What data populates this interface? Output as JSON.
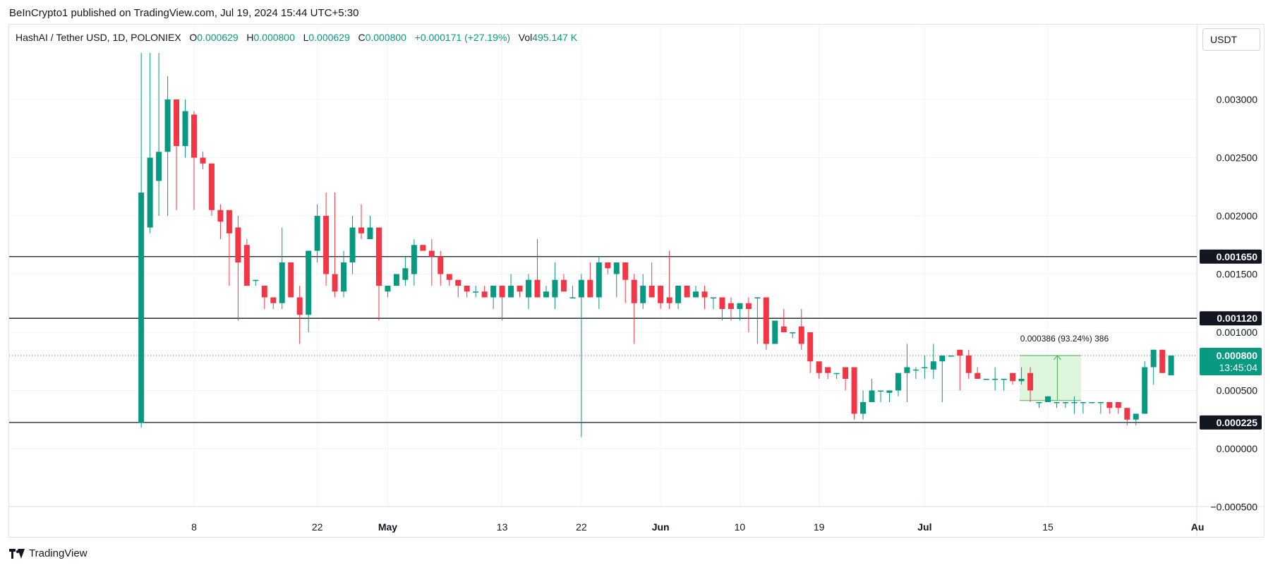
{
  "header": {
    "published": "BeInCrypto1 published on TradingView.com, Jul 19, 2024 15:44 UTC+5:30"
  },
  "legend": {
    "symbol": "HashAI / Tether USD, 1D, POLONIEX",
    "o_label": "O",
    "o_value": "0.000629",
    "h_label": "H",
    "h_value": "0.000800",
    "l_label": "L",
    "l_value": "0.000629",
    "c_label": "C",
    "c_value": "0.000800",
    "change": "+0.000171 (+27.19%)",
    "vol_label": "Vol",
    "vol_value": "495.147 K"
  },
  "currency": "USDT",
  "footer": {
    "brand": "TradingView"
  },
  "colors": {
    "up": "#089981",
    "down": "#f23645",
    "grid": "#f0f3fa",
    "level": "#131722",
    "measure_fill": "#d8f5d8",
    "measure_line": "#4caf50"
  },
  "chart_data": {
    "type": "candlestick",
    "ylim": [
      -0.0006,
      0.0034
    ],
    "y_ticks": [
      {
        "value": 0.003,
        "label": "0.003000"
      },
      {
        "value": 0.0025,
        "label": "0.002500"
      },
      {
        "value": 0.002,
        "label": "0.002000"
      },
      {
        "value": 0.0015,
        "label": "0.001500"
      },
      {
        "value": 0.001,
        "label": "0.001000"
      },
      {
        "value": 0.0005,
        "label": "0.000500"
      },
      {
        "value": 0.0,
        "label": "0.000000"
      },
      {
        "value": -0.0005,
        "label": "−0.000500"
      }
    ],
    "x_ticks": [
      {
        "day": 8,
        "label": "8"
      },
      {
        "day": 22,
        "label": "22"
      },
      {
        "day": 30,
        "label": "May"
      },
      {
        "day": 43,
        "label": "13"
      },
      {
        "day": 52,
        "label": "22"
      },
      {
        "day": 61,
        "label": "Jun"
      },
      {
        "day": 70,
        "label": "10"
      },
      {
        "day": 79,
        "label": "19"
      },
      {
        "day": 91,
        "label": "Jul"
      },
      {
        "day": 105,
        "label": "15"
      },
      {
        "day": 122,
        "label": "Au"
      }
    ],
    "candles": [
      [
        0.00022,
        0.0022,
        0.0034,
        0.00018
      ],
      [
        0.0019,
        0.0025,
        0.0034,
        0.00185
      ],
      [
        0.0023,
        0.00255,
        0.0034,
        0.002
      ],
      [
        0.00255,
        0.003,
        0.0032,
        0.002
      ],
      [
        0.003,
        0.0026,
        0.003,
        0.00205
      ],
      [
        0.0026,
        0.0029,
        0.003,
        0.0025
      ],
      [
        0.00287,
        0.0025,
        0.0029,
        0.00205
      ],
      [
        0.0025,
        0.00245,
        0.00255,
        0.0024
      ],
      [
        0.00245,
        0.00205,
        0.00245,
        0.002
      ],
      [
        0.00205,
        0.00195,
        0.0021,
        0.0018
      ],
      [
        0.00205,
        0.00185,
        0.002,
        0.0014
      ],
      [
        0.0019,
        0.0016,
        0.002,
        0.0011
      ],
      [
        0.00175,
        0.0014,
        0.0018,
        0.0014
      ],
      [
        0.00145,
        0.00145,
        0.00145,
        0.0014
      ],
      [
        0.0014,
        0.0013,
        0.0014,
        0.0012
      ],
      [
        0.0013,
        0.00125,
        0.00125,
        0.0012
      ],
      [
        0.00125,
        0.0016,
        0.0019,
        0.0012
      ],
      [
        0.0016,
        0.0013,
        0.0016,
        0.0013
      ],
      [
        0.0013,
        0.00115,
        0.0014,
        0.0009
      ],
      [
        0.00115,
        0.0017,
        0.0017,
        0.001
      ],
      [
        0.0017,
        0.002,
        0.0021,
        0.0016
      ],
      [
        0.002,
        0.0015,
        0.0022,
        0.0014
      ],
      [
        0.0015,
        0.00135,
        0.0022,
        0.0013
      ],
      [
        0.00135,
        0.0016,
        0.0017,
        0.0013
      ],
      [
        0.0016,
        0.0019,
        0.002,
        0.0015
      ],
      [
        0.0019,
        0.00185,
        0.0021,
        0.0018
      ],
      [
        0.0018,
        0.0019,
        0.002,
        0.0018
      ],
      [
        0.0019,
        0.0014,
        0.0019,
        0.0011
      ],
      [
        0.00135,
        0.0014,
        0.0014,
        0.0013
      ],
      [
        0.0014,
        0.0015,
        0.0015,
        0.0014
      ],
      [
        0.00145,
        0.00155,
        0.00165,
        0.0014
      ],
      [
        0.0015,
        0.00175,
        0.0018,
        0.0014
      ],
      [
        0.00175,
        0.0017,
        0.00175,
        0.0017
      ],
      [
        0.0017,
        0.00165,
        0.0018,
        0.0014
      ],
      [
        0.00165,
        0.0015,
        0.0017,
        0.0014
      ],
      [
        0.0015,
        0.00145,
        0.0015,
        0.0014
      ],
      [
        0.00145,
        0.0014,
        0.0014,
        0.0013
      ],
      [
        0.0014,
        0.00135,
        0.0014,
        0.0013
      ],
      [
        0.00135,
        0.00135,
        0.0014,
        0.0013
      ],
      [
        0.00135,
        0.0013,
        0.0014,
        0.0013
      ],
      [
        0.0013,
        0.0014,
        0.0014,
        0.0012
      ],
      [
        0.0014,
        0.0013,
        0.0014,
        0.0011
      ],
      [
        0.0013,
        0.0014,
        0.0015,
        0.0013
      ],
      [
        0.0014,
        0.00135,
        0.0014,
        0.0013
      ],
      [
        0.0013,
        0.00145,
        0.0015,
        0.0012
      ],
      [
        0.00145,
        0.0013,
        0.0018,
        0.0013
      ],
      [
        0.0013,
        0.00135,
        0.0014,
        0.0013
      ],
      [
        0.0013,
        0.00145,
        0.0016,
        0.0012
      ],
      [
        0.00145,
        0.00135,
        0.0015,
        0.0014
      ],
      [
        0.0013,
        0.0013,
        0.0014,
        0.0013
      ],
      [
        0.0013,
        0.00145,
        0.0015,
        0.0001
      ],
      [
        0.00145,
        0.0013,
        0.0016,
        0.0013
      ],
      [
        0.0013,
        0.0016,
        0.00165,
        0.0012
      ],
      [
        0.0016,
        0.00155,
        0.0016,
        0.0015
      ],
      [
        0.0015,
        0.0016,
        0.0016,
        0.0013
      ],
      [
        0.0016,
        0.00145,
        0.0016,
        0.00125
      ],
      [
        0.00145,
        0.00125,
        0.0015,
        0.0009
      ],
      [
        0.00125,
        0.0014,
        0.0015,
        0.0012
      ],
      [
        0.0014,
        0.0013,
        0.0016,
        0.0013
      ],
      [
        0.0014,
        0.00125,
        0.0014,
        0.0012
      ],
      [
        0.0013,
        0.00125,
        0.0017,
        0.0012
      ],
      [
        0.00125,
        0.0014,
        0.0014,
        0.0012
      ],
      [
        0.0014,
        0.0013,
        0.0014,
        0.0013
      ],
      [
        0.0013,
        0.00135,
        0.0014,
        0.0013
      ],
      [
        0.00135,
        0.0013,
        0.0014,
        0.0012
      ],
      [
        0.0013,
        0.0013,
        0.0013,
        0.0012
      ],
      [
        0.0013,
        0.0012,
        0.0013,
        0.0011
      ],
      [
        0.00125,
        0.0012,
        0.0013,
        0.0011
      ],
      [
        0.0012,
        0.00125,
        0.00125,
        0.0011
      ],
      [
        0.00125,
        0.0012,
        0.0013,
        0.001
      ],
      [
        0.0013,
        0.0013,
        0.0013,
        0.0009
      ],
      [
        0.0013,
        0.0009,
        0.0013,
        0.00085
      ],
      [
        0.0009,
        0.0011,
        0.0011,
        0.00095
      ],
      [
        0.00105,
        0.001,
        0.0012,
        0.001
      ],
      [
        0.001,
        0.001,
        0.001,
        0.00095
      ],
      [
        0.00105,
        0.0009,
        0.0012,
        0.00085
      ],
      [
        0.001,
        0.00075,
        0.001,
        0.00065
      ],
      [
        0.00075,
        0.00065,
        0.0007,
        0.0006
      ],
      [
        0.0007,
        0.00065,
        0.0007,
        0.0006
      ],
      [
        0.00065,
        0.00065,
        0.00065,
        0.0006
      ],
      [
        0.0007,
        0.0006,
        0.0007,
        0.0005
      ],
      [
        0.0007,
        0.0003,
        0.0007,
        0.00025
      ],
      [
        0.0003,
        0.0004,
        0.0005,
        0.00025
      ],
      [
        0.0004,
        0.0005,
        0.0006,
        0.0004
      ],
      [
        0.0005,
        0.0005,
        0.0005,
        0.0004
      ],
      [
        0.00048,
        0.0005,
        0.0005,
        0.0004
      ],
      [
        0.0005,
        0.00065,
        0.00065,
        0.00045
      ],
      [
        0.00065,
        0.0007,
        0.0009,
        0.0004
      ],
      [
        0.00068,
        0.00068,
        0.0007,
        0.0006
      ],
      [
        0.0007,
        0.0007,
        0.0008,
        0.0006
      ],
      [
        0.00068,
        0.00075,
        0.0009,
        0.0006
      ],
      [
        0.00075,
        0.0008,
        0.0008,
        0.0004
      ],
      [
        0.0008,
        0.0008,
        0.0008,
        0.0008
      ],
      [
        0.00085,
        0.0008,
        0.0008,
        0.0005
      ],
      [
        0.0008,
        0.00065,
        0.00085,
        0.0006
      ],
      [
        0.00065,
        0.0006,
        0.0007,
        0.0006
      ],
      [
        0.0006,
        0.0006,
        0.0006,
        0.0006
      ],
      [
        0.0006,
        0.0006,
        0.0007,
        0.0005
      ],
      [
        0.0006,
        0.0006,
        0.0006,
        0.0005
      ],
      [
        0.00065,
        0.00058,
        0.00065,
        0.00055
      ],
      [
        0.00058,
        0.0006,
        0.0007,
        0.00055
      ],
      [
        0.00065,
        0.0005,
        0.0007,
        0.0004
      ],
      [
        0.0004,
        0.0004,
        0.0004,
        0.00035
      ],
      [
        0.0004,
        0.00045,
        0.00045,
        0.0004
      ],
      [
        0.0004,
        0.0004,
        0.0004,
        0.00035
      ],
      [
        0.0004,
        0.0004,
        0.0004,
        0.00035
      ],
      [
        0.0004,
        0.0004,
        0.00045,
        0.0003
      ],
      [
        0.0004,
        0.0004,
        0.0004,
        0.0003
      ],
      [
        0.0004,
        0.0004,
        0.0004,
        0.0004
      ],
      [
        0.0004,
        0.0004,
        0.0004,
        0.0003
      ],
      [
        0.0004,
        0.00035,
        0.0004,
        0.0003
      ],
      [
        0.0004,
        0.00035,
        0.0004,
        0.0003
      ],
      [
        0.00035,
        0.00025,
        0.00035,
        0.0002
      ],
      [
        0.00025,
        0.0003,
        0.0003,
        0.0002
      ],
      [
        0.0003,
        0.0007,
        0.00075,
        0.0003
      ],
      [
        0.0007,
        0.00085,
        0.00085,
        0.00055
      ],
      [
        0.00085,
        0.00065,
        0.00085,
        0.00065
      ],
      [
        0.00063,
        0.0008,
        0.0008,
        0.00063
      ]
    ],
    "first_day": 2,
    "horizontal_levels": [
      {
        "value": 0.00165,
        "label": "0.001650"
      },
      {
        "value": 0.00112,
        "label": "0.001120"
      },
      {
        "value": 0.000225,
        "label": "0.000225"
      }
    ],
    "last_price": {
      "value": 0.0008,
      "label": "0.000800",
      "countdown": "13:45:04"
    },
    "measure": {
      "from_day": 105,
      "to_day": 111,
      "low": 0.000414,
      "high": 0.0008,
      "label": "0.000386 (93.24%) 386"
    }
  }
}
